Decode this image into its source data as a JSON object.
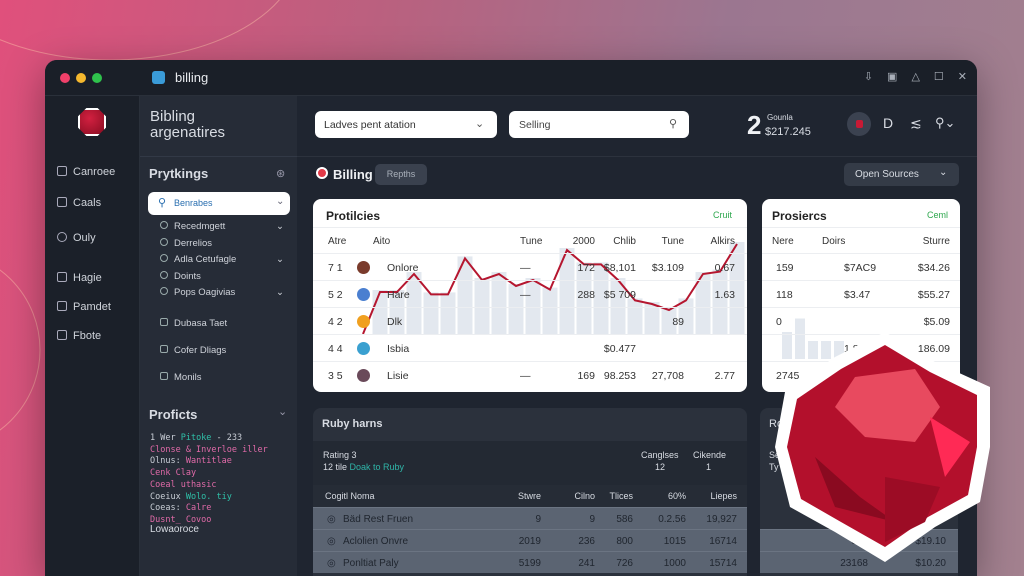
{
  "window": {
    "title": "billing",
    "controls": [
      "download-icon",
      "screenshot-icon",
      "notification-icon",
      "maximize-icon",
      "close-icon"
    ]
  },
  "colors": {
    "accent": "#b5162f",
    "green": "#2fa84f",
    "teal": "#2fb5a8"
  },
  "rail": {
    "items": [
      {
        "label": "Canroee",
        "icon": "book-icon"
      },
      {
        "label": "Caals",
        "icon": "calendar-icon"
      },
      {
        "label": "Ouly",
        "icon": "user-icon"
      },
      {
        "label": "Hagie",
        "icon": "chart-icon"
      },
      {
        "label": "Pamdet",
        "icon": "folder-icon"
      },
      {
        "label": "Fbote",
        "icon": "table-icon"
      }
    ]
  },
  "sidebar": {
    "title1": "Bibling",
    "title2": "argenatires",
    "section": "Prytkings",
    "search_value": "Benrabes",
    "items": [
      "Recedmgett",
      "Derrelios",
      "Adla Cetufagle",
      "Doints",
      "Pops Oagivias"
    ],
    "items2": [
      "Dubasa Taet",
      "Cofer Dliags",
      "Monils"
    ],
    "projects_title": "Proficts",
    "project_lines": [
      {
        "a": "1 Wer ",
        "b": "Pitoke",
        "c": " - 233"
      },
      {
        "a": "",
        "b": "Clonse & Inverloe iller",
        "c": ""
      },
      {
        "a": "Olnus: ",
        "b": "Wantitlae",
        "c": ""
      },
      {
        "a": "",
        "b": "Cenk Clay",
        "c": ""
      },
      {
        "a": "",
        "b": "Coeal uthasic",
        "c": ""
      },
      {
        "a": "Coeiux ",
        "b": "Wolo. tiy",
        "c": ""
      },
      {
        "a": "Coeas: ",
        "b": "Calre",
        "c": ""
      },
      {
        "a": "",
        "b": "Dusnt_ Covoo",
        "c": ""
      }
    ],
    "footer": "Lowaoroce"
  },
  "topbar": {
    "dropdown": "Ladves pent atation",
    "search": "Selling",
    "count": "2",
    "count_label": "Gounla",
    "count_value": "$217.245"
  },
  "subheader": {
    "title": "Billing",
    "pill": "Repths",
    "open_sources": "Open Sources"
  },
  "card1": {
    "title": "Protilcies",
    "link": "Cruit",
    "headers": [
      "Atre",
      "Aito",
      "Tune",
      "2000",
      "Chlib",
      "Tune",
      "Alkirs"
    ],
    "rows": [
      [
        "7 1",
        "Onlore",
        "—",
        "172",
        "$8,101",
        "$3.109",
        "0.67"
      ],
      [
        "5 2",
        "Hare",
        "—",
        "288",
        "$5 709",
        "",
        "1.63"
      ],
      [
        "4 2",
        "Dlk",
        "",
        "",
        "",
        "89",
        ""
      ],
      [
        "4 4",
        "Isbia",
        "",
        "",
        "$0.477",
        "",
        ""
      ],
      [
        "3 5",
        "Lisie",
        "—",
        "169",
        "98.253",
        "27,708",
        "2.77"
      ]
    ],
    "trend": [
      0,
      3.5,
      3.5,
      5,
      3.3,
      3.3,
      6.3,
      4.5,
      5,
      4,
      4.5,
      3.7,
      7,
      5.8,
      5.8,
      4.5,
      2.8,
      2.5,
      2,
      2.8,
      5,
      5.2,
      7.5
    ]
  },
  "card2": {
    "title": "Prosiercs",
    "link": "Ceml",
    "headers": [
      "Nere",
      "Doirs",
      "Sturre"
    ],
    "rows": [
      [
        "159",
        "$7AC9",
        "$34.26"
      ],
      [
        "118",
        "$3.47",
        "$55.27"
      ],
      [
        "0",
        "",
        "$5.09"
      ],
      [
        "",
        "1.87",
        "186.09"
      ],
      [
        "2745",
        "",
        ""
      ]
    ],
    "bars": [
      0.6,
      0.9,
      0.4,
      0.4,
      0.4
    ]
  },
  "panel": {
    "title": "Ruby harns",
    "rating": "Rating 3",
    "sub_prefix": "12 tile ",
    "sub_link": "Doak to Ruby",
    "stat1_label": "Canglses",
    "stat1_value": "12",
    "stat2_label": "Cikende",
    "stat2_value": "1",
    "headers": [
      "Cogitl Noma",
      "Stwre",
      "Cilno",
      "Tlices",
      "60%",
      "Liepes"
    ],
    "rows": [
      [
        "Bäd Rest Fruen",
        "9",
        "9",
        "586",
        "0.2.56",
        "19,927"
      ],
      [
        "Aclolien Onvre",
        "2019",
        "236",
        "800",
        "1015",
        "16714"
      ],
      [
        "Ponltiat Paly",
        "5199",
        "241",
        "726",
        "1000",
        "15714"
      ]
    ]
  },
  "panel2": {
    "title": "Ro",
    "l1": "Se",
    "l2": "Ty",
    "rows": [
      [
        "830",
        "$19.10"
      ],
      [
        "23168",
        "$10.20"
      ]
    ]
  }
}
